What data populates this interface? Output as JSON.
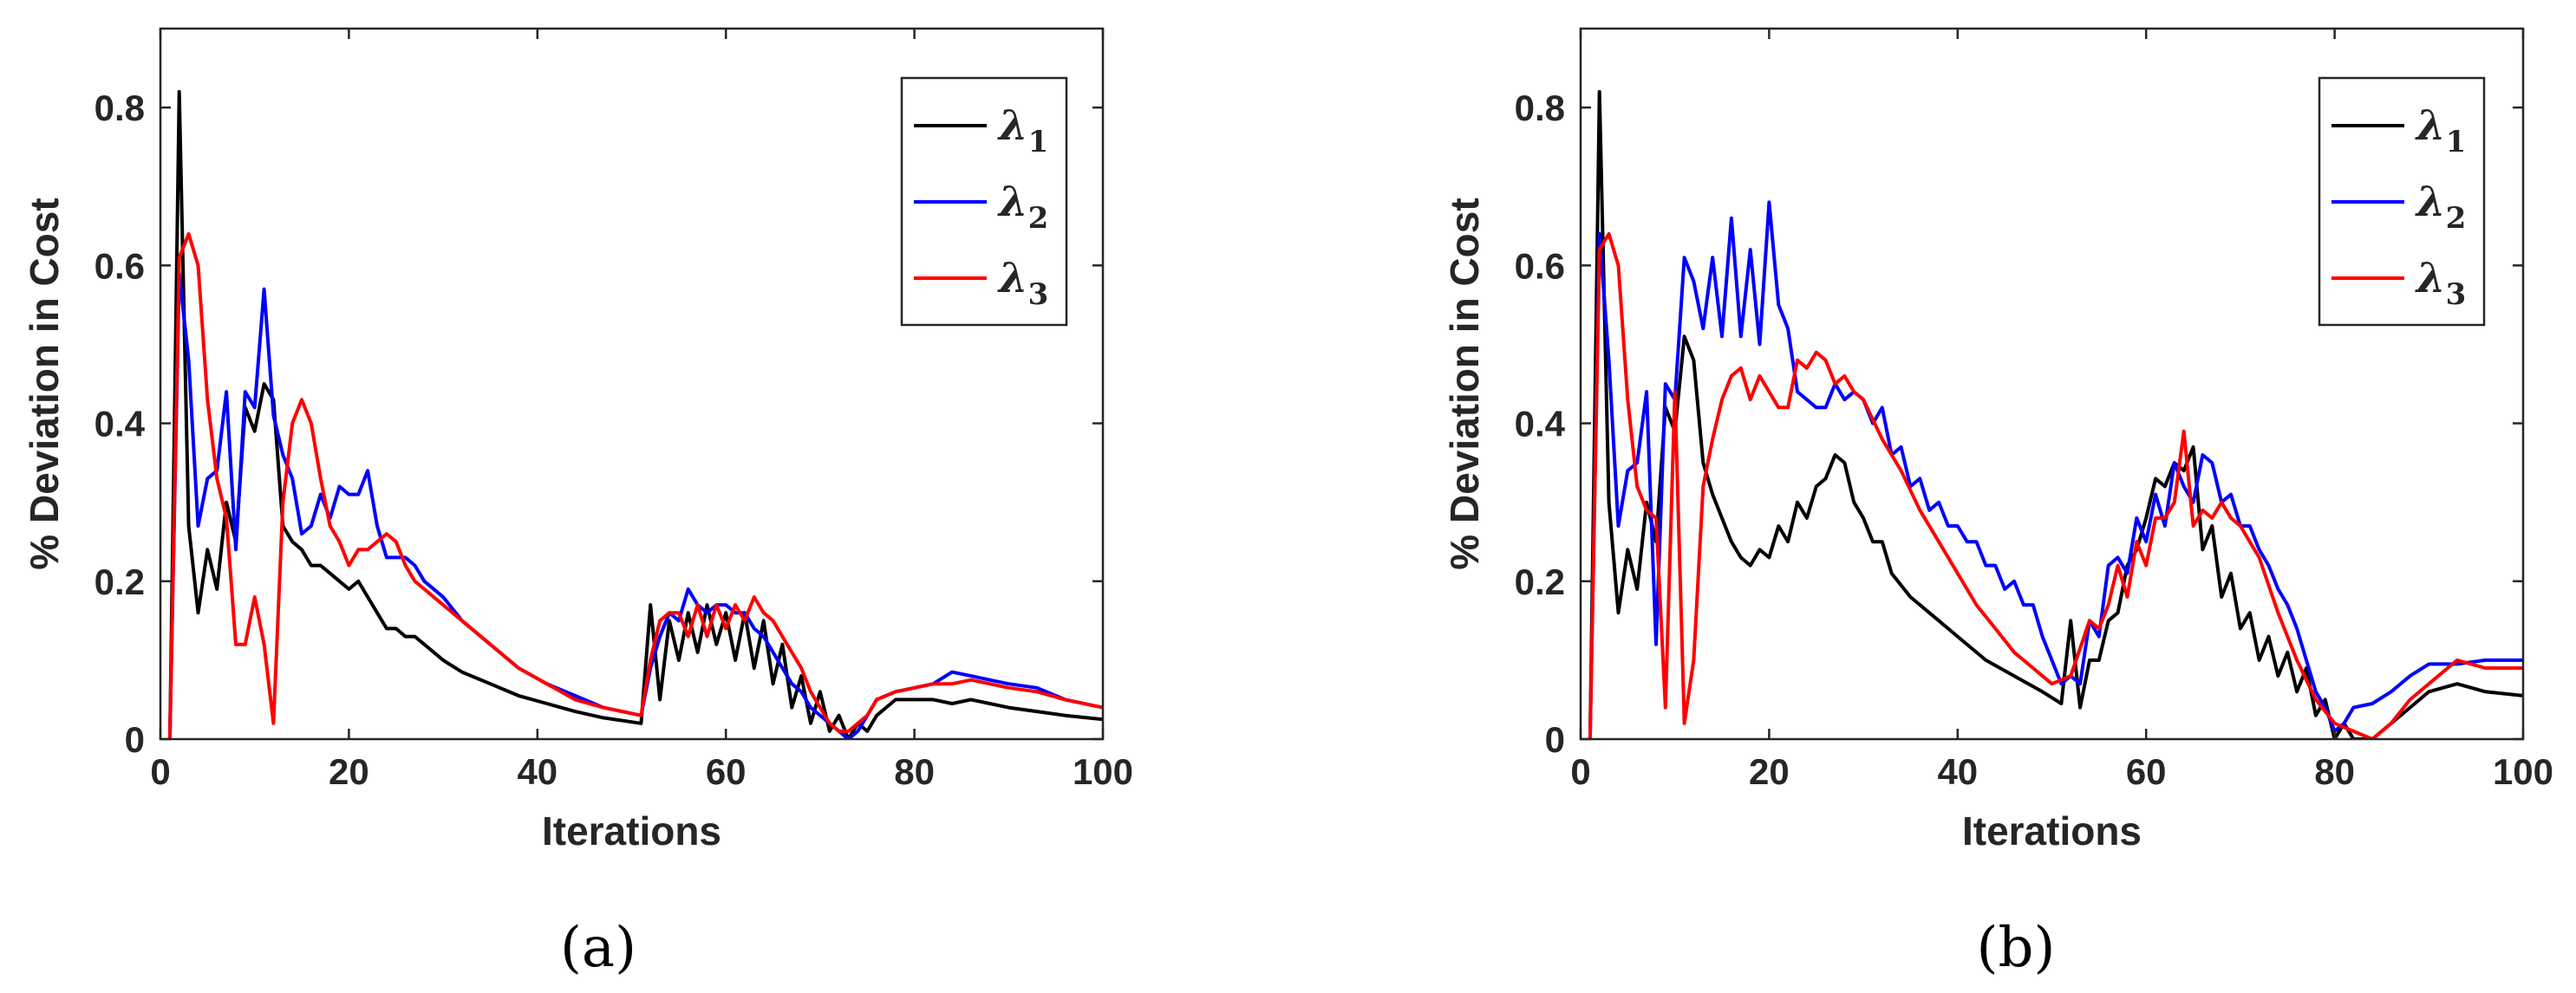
{
  "chart_data": [
    {
      "type": "line",
      "panel_label": "(a)",
      "xlabel": "Iterations",
      "ylabel": "% Deviation in Cost",
      "xlim": [
        0,
        100
      ],
      "ylim": [
        0,
        0.9
      ],
      "xticks": [
        "0",
        "20",
        "40",
        "60",
        "80",
        "100"
      ],
      "yticks": [
        "0",
        "0.2",
        "0.4",
        "0.6",
        "0.8"
      ],
      "legend_position": "top-right",
      "series": [
        {
          "name": "λ1",
          "symbol": "λ",
          "subscript": "1",
          "color": "#000000",
          "x": [
            1,
            2,
            3,
            4,
            5,
            6,
            7,
            8,
            9,
            10,
            11,
            12,
            13,
            14,
            15,
            16,
            17,
            18,
            19,
            20,
            21,
            22,
            23,
            24,
            25,
            26,
            27,
            28,
            30,
            32,
            35,
            38,
            41,
            44,
            47,
            51,
            52,
            53,
            54,
            55,
            56,
            57,
            58,
            59,
            60,
            61,
            62,
            63,
            64,
            65,
            66,
            67,
            68,
            69,
            70,
            71,
            72,
            73,
            74,
            75,
            76,
            77,
            78,
            80,
            82,
            84,
            86,
            88,
            90,
            93,
            96,
            100
          ],
          "values": [
            0,
            0.82,
            0.27,
            0.16,
            0.24,
            0.19,
            0.3,
            0.25,
            0.42,
            0.39,
            0.45,
            0.43,
            0.27,
            0.25,
            0.24,
            0.22,
            0.22,
            0.21,
            0.2,
            0.19,
            0.2,
            0.18,
            0.16,
            0.14,
            0.14,
            0.13,
            0.13,
            0.12,
            0.1,
            0.085,
            0.07,
            0.055,
            0.045,
            0.035,
            0.027,
            0.02,
            0.17,
            0.05,
            0.15,
            0.1,
            0.16,
            0.11,
            0.17,
            0.12,
            0.16,
            0.1,
            0.16,
            0.09,
            0.15,
            0.07,
            0.12,
            0.04,
            0.08,
            0.02,
            0.06,
            0.01,
            0.03,
            0.0,
            0.02,
            0.01,
            0.03,
            0.04,
            0.05,
            0.05,
            0.05,
            0.045,
            0.05,
            0.045,
            0.04,
            0.035,
            0.03,
            0.025
          ]
        },
        {
          "name": "λ2",
          "symbol": "λ",
          "subscript": "2",
          "color": "#0000ff",
          "x": [
            1,
            2,
            3,
            4,
            5,
            6,
            7,
            8,
            9,
            10,
            11,
            12,
            13,
            14,
            15,
            16,
            17,
            18,
            19,
            20,
            21,
            22,
            23,
            24,
            25,
            26,
            27,
            28,
            30,
            32,
            35,
            38,
            41,
            44,
            47,
            51,
            52,
            53,
            54,
            55,
            56,
            57,
            58,
            59,
            60,
            61,
            62,
            63,
            64,
            65,
            66,
            67,
            68,
            69,
            70,
            71,
            72,
            73,
            74,
            75,
            76,
            78,
            80,
            82,
            84,
            86,
            88,
            90,
            93,
            96,
            100
          ],
          "values": [
            0,
            0.59,
            0.48,
            0.27,
            0.33,
            0.34,
            0.44,
            0.24,
            0.44,
            0.42,
            0.57,
            0.41,
            0.36,
            0.33,
            0.26,
            0.27,
            0.31,
            0.28,
            0.32,
            0.31,
            0.31,
            0.34,
            0.27,
            0.23,
            0.23,
            0.23,
            0.22,
            0.2,
            0.18,
            0.15,
            0.12,
            0.09,
            0.07,
            0.055,
            0.04,
            0.03,
            0.09,
            0.13,
            0.16,
            0.15,
            0.19,
            0.17,
            0.16,
            0.17,
            0.17,
            0.16,
            0.16,
            0.14,
            0.13,
            0.11,
            0.09,
            0.07,
            0.06,
            0.04,
            0.03,
            0.02,
            0.01,
            0.0,
            0.01,
            0.03,
            0.05,
            0.06,
            0.065,
            0.07,
            0.085,
            0.08,
            0.075,
            0.07,
            0.065,
            0.05,
            0.04
          ]
        },
        {
          "name": "λ3",
          "symbol": "λ",
          "subscript": "3",
          "color": "#ff0000",
          "x": [
            1,
            2,
            3,
            4,
            5,
            6,
            7,
            8,
            9,
            10,
            11,
            12,
            13,
            14,
            15,
            16,
            17,
            18,
            19,
            20,
            21,
            22,
            23,
            24,
            25,
            26,
            27,
            28,
            30,
            32,
            35,
            38,
            41,
            44,
            47,
            51,
            52,
            53,
            54,
            55,
            56,
            57,
            58,
            59,
            60,
            61,
            62,
            63,
            64,
            65,
            66,
            67,
            68,
            69,
            70,
            71,
            72,
            73,
            74,
            75,
            76,
            78,
            80,
            82,
            84,
            86,
            88,
            90,
            93,
            96,
            100
          ],
          "values": [
            0,
            0.61,
            0.64,
            0.6,
            0.43,
            0.33,
            0.28,
            0.12,
            0.12,
            0.18,
            0.12,
            0.02,
            0.3,
            0.4,
            0.43,
            0.4,
            0.33,
            0.27,
            0.25,
            0.22,
            0.24,
            0.24,
            0.25,
            0.26,
            0.25,
            0.22,
            0.2,
            0.19,
            0.17,
            0.15,
            0.12,
            0.09,
            0.07,
            0.05,
            0.04,
            0.03,
            0.1,
            0.15,
            0.16,
            0.16,
            0.13,
            0.17,
            0.13,
            0.17,
            0.14,
            0.17,
            0.15,
            0.18,
            0.16,
            0.15,
            0.13,
            0.11,
            0.09,
            0.06,
            0.04,
            0.02,
            0.01,
            0.01,
            0.02,
            0.03,
            0.05,
            0.06,
            0.065,
            0.07,
            0.07,
            0.075,
            0.07,
            0.065,
            0.06,
            0.05,
            0.04
          ]
        }
      ]
    },
    {
      "type": "line",
      "panel_label": "(b)",
      "xlabel": "Iterations",
      "ylabel": "% Deviation in Cost",
      "xlim": [
        0,
        100
      ],
      "ylim": [
        0,
        0.9
      ],
      "xticks": [
        "0",
        "20",
        "40",
        "60",
        "80",
        "100"
      ],
      "yticks": [
        "0",
        "0.2",
        "0.4",
        "0.6",
        "0.8"
      ],
      "legend_position": "top-right",
      "series": [
        {
          "name": "λ1",
          "symbol": "λ",
          "subscript": "1",
          "color": "#000000",
          "x": [
            1,
            2,
            3,
            4,
            5,
            6,
            7,
            8,
            9,
            10,
            11,
            12,
            13,
            14,
            15,
            16,
            17,
            18,
            19,
            20,
            21,
            22,
            23,
            24,
            25,
            26,
            27,
            28,
            29,
            30,
            31,
            32,
            33,
            35,
            37,
            40,
            43,
            46,
            49,
            51,
            52,
            53,
            54,
            55,
            56,
            57,
            58,
            59,
            60,
            61,
            62,
            63,
            64,
            65,
            66,
            67,
            68,
            69,
            70,
            71,
            72,
            73,
            74,
            75,
            76,
            77,
            78,
            79,
            80,
            81,
            82,
            84,
            86,
            88,
            90,
            93,
            96,
            100
          ],
          "values": [
            0,
            0.82,
            0.3,
            0.16,
            0.24,
            0.19,
            0.3,
            0.25,
            0.42,
            0.39,
            0.51,
            0.48,
            0.35,
            0.31,
            0.28,
            0.25,
            0.23,
            0.22,
            0.24,
            0.23,
            0.27,
            0.25,
            0.3,
            0.28,
            0.32,
            0.33,
            0.36,
            0.35,
            0.3,
            0.28,
            0.25,
            0.25,
            0.21,
            0.18,
            0.16,
            0.13,
            0.1,
            0.08,
            0.06,
            0.045,
            0.15,
            0.04,
            0.1,
            0.1,
            0.15,
            0.16,
            0.22,
            0.24,
            0.28,
            0.33,
            0.32,
            0.35,
            0.34,
            0.37,
            0.24,
            0.27,
            0.18,
            0.21,
            0.14,
            0.16,
            0.1,
            0.13,
            0.08,
            0.11,
            0.06,
            0.09,
            0.03,
            0.05,
            0.0,
            0.02,
            0.0,
            0.0,
            0.02,
            0.04,
            0.06,
            0.07,
            0.06,
            0.055
          ]
        },
        {
          "name": "λ2",
          "symbol": "λ",
          "subscript": "2",
          "color": "#0000ff",
          "x": [
            1,
            2,
            3,
            4,
            5,
            6,
            7,
            8,
            9,
            10,
            11,
            12,
            13,
            14,
            15,
            16,
            17,
            18,
            19,
            20,
            21,
            22,
            23,
            24,
            25,
            26,
            27,
            28,
            29,
            30,
            31,
            32,
            33,
            34,
            35,
            36,
            37,
            38,
            39,
            40,
            41,
            42,
            43,
            44,
            45,
            46,
            47,
            48,
            49,
            50,
            51,
            52,
            53,
            54,
            55,
            56,
            57,
            58,
            59,
            60,
            61,
            62,
            63,
            64,
            65,
            66,
            67,
            68,
            69,
            70,
            71,
            72,
            73,
            74,
            75,
            76,
            77,
            78,
            79,
            80,
            81,
            82,
            84,
            86,
            88,
            90,
            93,
            96,
            100
          ],
          "values": [
            0,
            0.64,
            0.48,
            0.27,
            0.34,
            0.35,
            0.44,
            0.12,
            0.45,
            0.43,
            0.61,
            0.58,
            0.52,
            0.61,
            0.51,
            0.66,
            0.51,
            0.62,
            0.5,
            0.68,
            0.55,
            0.52,
            0.44,
            0.43,
            0.42,
            0.42,
            0.45,
            0.43,
            0.44,
            0.43,
            0.4,
            0.42,
            0.36,
            0.37,
            0.32,
            0.33,
            0.29,
            0.3,
            0.27,
            0.27,
            0.25,
            0.25,
            0.22,
            0.22,
            0.19,
            0.2,
            0.17,
            0.17,
            0.13,
            0.1,
            0.07,
            0.08,
            0.07,
            0.15,
            0.13,
            0.22,
            0.23,
            0.21,
            0.28,
            0.25,
            0.31,
            0.27,
            0.35,
            0.32,
            0.3,
            0.36,
            0.35,
            0.3,
            0.31,
            0.27,
            0.27,
            0.24,
            0.22,
            0.19,
            0.17,
            0.14,
            0.1,
            0.06,
            0.04,
            0.01,
            0.02,
            0.04,
            0.045,
            0.06,
            0.08,
            0.095,
            0.095,
            0.1,
            0.1
          ]
        },
        {
          "name": "λ3",
          "symbol": "λ",
          "subscript": "3",
          "color": "#ff0000",
          "x": [
            1,
            2,
            3,
            4,
            5,
            6,
            7,
            8,
            9,
            10,
            11,
            12,
            13,
            14,
            15,
            16,
            17,
            18,
            19,
            20,
            21,
            22,
            23,
            24,
            25,
            26,
            27,
            28,
            29,
            30,
            32,
            34,
            36,
            38,
            40,
            42,
            44,
            46,
            48,
            50,
            52,
            54,
            55,
            56,
            57,
            58,
            59,
            60,
            61,
            62,
            63,
            64,
            65,
            66,
            67,
            68,
            69,
            70,
            72,
            74,
            76,
            78,
            80,
            82,
            84,
            86,
            88,
            90,
            93,
            96,
            100
          ],
          "values": [
            0,
            0.62,
            0.64,
            0.6,
            0.43,
            0.32,
            0.29,
            0.28,
            0.04,
            0.44,
            0.02,
            0.1,
            0.32,
            0.38,
            0.43,
            0.46,
            0.47,
            0.43,
            0.46,
            0.44,
            0.42,
            0.42,
            0.48,
            0.47,
            0.49,
            0.48,
            0.45,
            0.46,
            0.44,
            0.43,
            0.38,
            0.34,
            0.29,
            0.25,
            0.21,
            0.17,
            0.14,
            0.11,
            0.09,
            0.07,
            0.08,
            0.15,
            0.14,
            0.17,
            0.22,
            0.18,
            0.25,
            0.22,
            0.28,
            0.28,
            0.3,
            0.39,
            0.27,
            0.29,
            0.28,
            0.3,
            0.28,
            0.27,
            0.23,
            0.16,
            0.1,
            0.05,
            0.02,
            0.01,
            0.0,
            0.02,
            0.05,
            0.07,
            0.1,
            0.09,
            0.09
          ]
        }
      ]
    }
  ]
}
